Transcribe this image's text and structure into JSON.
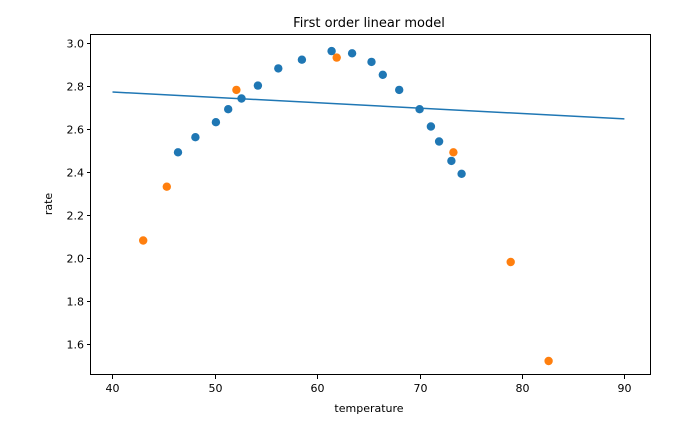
{
  "chart_data": {
    "type": "scatter",
    "title": "First order linear model",
    "xlabel": "temperature",
    "ylabel": "rate",
    "xlim": [
      37.9,
      92.6
    ],
    "ylim": [
      1.455,
      3.035
    ],
    "xticks": [
      40,
      50,
      60,
      70,
      80,
      90
    ],
    "yticks": [
      1.6,
      1.8,
      2.0,
      2.2,
      2.4,
      2.6,
      2.8,
      3.0
    ],
    "grid": false,
    "legend": "none",
    "series": [
      {
        "type": "scatter",
        "color": "#1f77b4",
        "x": [
          46.4,
          48.1,
          50.1,
          51.3,
          52.6,
          54.2,
          56.2,
          58.5,
          61.4,
          63.4,
          65.3,
          66.4,
          68.0,
          70.0,
          71.1,
          71.9,
          73.1,
          74.1
        ],
        "y": [
          2.49,
          2.56,
          2.63,
          2.69,
          2.74,
          2.8,
          2.88,
          2.92,
          2.96,
          2.95,
          2.91,
          2.85,
          2.78,
          2.69,
          2.61,
          2.54,
          2.45,
          2.39
        ]
      },
      {
        "type": "scatter",
        "color": "#ff7f0e",
        "x": [
          43.0,
          45.3,
          52.1,
          61.9,
          73.3,
          78.9,
          82.6
        ],
        "y": [
          2.08,
          2.33,
          2.78,
          2.93,
          2.49,
          1.98,
          1.52
        ]
      },
      {
        "type": "line",
        "color": "#1f77b4",
        "x": [
          40,
          90
        ],
        "y": [
          2.77,
          2.645
        ]
      }
    ]
  }
}
